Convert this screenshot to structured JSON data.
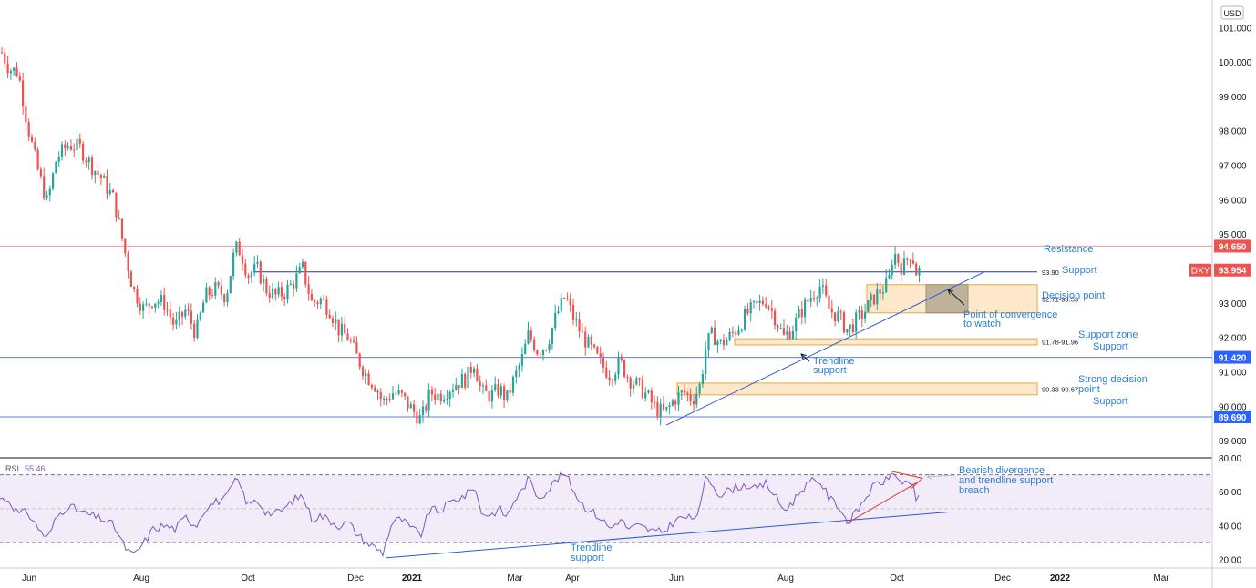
{
  "currency_button": "USD",
  "symbol": "DXY",
  "chart_data": {
    "type": "candlestick",
    "price_axis": {
      "ylim": [
        88.5,
        101.8
      ],
      "ticks": [
        "89.000",
        "90.000",
        "91.000",
        "92.000",
        "93.000",
        "94.000",
        "95.000",
        "96.000",
        "97.000",
        "98.000",
        "99.000",
        "100.000",
        "101.000"
      ]
    },
    "time_axis": {
      "ticks": [
        "Jun",
        "Aug",
        "Oct",
        "Dec",
        "2021",
        "Mar",
        "Apr",
        "Jun",
        "Aug",
        "Oct",
        "Dec",
        "2022",
        "Mar"
      ]
    },
    "price_path": [
      [
        0,
        100.4
      ],
      [
        10,
        99.8
      ],
      [
        20,
        99.7
      ],
      [
        30,
        98.2
      ],
      [
        40,
        97.0
      ],
      [
        52,
        95.9
      ],
      [
        62,
        97.2
      ],
      [
        75,
        97.6
      ],
      [
        88,
        97.5
      ],
      [
        100,
        97.0
      ],
      [
        112,
        96.6
      ],
      [
        125,
        96.0
      ],
      [
        136,
        94.6
      ],
      [
        146,
        93.4
      ],
      [
        158,
        92.8
      ],
      [
        168,
        93.1
      ],
      [
        180,
        93.0
      ],
      [
        192,
        92.3
      ],
      [
        204,
        92.8
      ],
      [
        215,
        92.1
      ],
      [
        225,
        93.2
      ],
      [
        236,
        93.4
      ],
      [
        248,
        93.2
      ],
      [
        258,
        94.6
      ],
      [
        264,
        94.5
      ],
      [
        272,
        93.8
      ],
      [
        282,
        94.0
      ],
      [
        292,
        93.4
      ],
      [
        302,
        93.2
      ],
      [
        312,
        93.3
      ],
      [
        322,
        93.6
      ],
      [
        332,
        94.0
      ],
      [
        342,
        93.0
      ],
      [
        352,
        93.1
      ],
      [
        362,
        92.8
      ],
      [
        372,
        92.2
      ],
      [
        382,
        92.0
      ],
      [
        392,
        91.4
      ],
      [
        402,
        90.9
      ],
      [
        412,
        90.6
      ],
      [
        420,
        90.1
      ],
      [
        430,
        90.4
      ],
      [
        440,
        90.3
      ],
      [
        452,
        89.9
      ],
      [
        462,
        89.6
      ],
      [
        472,
        90.4
      ],
      [
        482,
        90.3
      ],
      [
        492,
        90.5
      ],
      [
        502,
        90.7
      ],
      [
        512,
        90.8
      ],
      [
        520,
        91.3
      ],
      [
        528,
        90.4
      ],
      [
        538,
        90.3
      ],
      [
        548,
        90.5
      ],
      [
        556,
        90.2
      ],
      [
        564,
        90.8
      ],
      [
        572,
        91.3
      ],
      [
        580,
        92.1
      ],
      [
        590,
        91.6
      ],
      [
        600,
        91.8
      ],
      [
        610,
        92.6
      ],
      [
        620,
        93.2
      ],
      [
        630,
        92.5
      ],
      [
        640,
        92.0
      ],
      [
        650,
        91.6
      ],
      [
        660,
        91.2
      ],
      [
        670,
        90.9
      ],
      [
        680,
        91.3
      ],
      [
        690,
        90.8
      ],
      [
        700,
        90.6
      ],
      [
        710,
        90.3
      ],
      [
        720,
        89.9
      ],
      [
        730,
        89.8
      ],
      [
        740,
        90.2
      ],
      [
        750,
        90.4
      ],
      [
        760,
        90.2
      ],
      [
        768,
        90.6
      ],
      [
        775,
        91.8
      ],
      [
        782,
        92.1
      ],
      [
        790,
        91.8
      ],
      [
        800,
        92.0
      ],
      [
        810,
        92.3
      ],
      [
        820,
        92.7
      ],
      [
        830,
        92.9
      ],
      [
        840,
        93.1
      ],
      [
        850,
        92.6
      ],
      [
        860,
        92.0
      ],
      [
        870,
        92.3
      ],
      [
        880,
        92.8
      ],
      [
        890,
        93.2
      ],
      [
        900,
        93.5
      ],
      [
        910,
        92.8
      ],
      [
        920,
        92.6
      ],
      [
        930,
        92.2
      ],
      [
        940,
        92.5
      ],
      [
        950,
        92.8
      ],
      [
        960,
        93.2
      ],
      [
        968,
        93.4
      ],
      [
        975,
        93.6
      ],
      [
        980,
        94.5
      ],
      [
        990,
        94.0
      ],
      [
        1000,
        94.5
      ],
      [
        1005,
        93.9
      ],
      [
        1010,
        93.95
      ]
    ],
    "rsi": {
      "label": "RSI",
      "value": "55.46",
      "ylim": [
        15,
        80
      ],
      "ticks": [
        "20.00",
        "40.00",
        "60.00",
        "80.00"
      ],
      "upper_band": 70,
      "lower_band": 30,
      "midline": 50,
      "points": [
        [
          0,
          56
        ],
        [
          10,
          55
        ],
        [
          20,
          47
        ],
        [
          30,
          48
        ],
        [
          40,
          40
        ],
        [
          52,
          32
        ],
        [
          62,
          45
        ],
        [
          75,
          52
        ],
        [
          88,
          48
        ],
        [
          100,
          46
        ],
        [
          112,
          44
        ],
        [
          125,
          40
        ],
        [
          136,
          28
        ],
        [
          146,
          22
        ],
        [
          158,
          30
        ],
        [
          168,
          38
        ],
        [
          180,
          40
        ],
        [
          192,
          38
        ],
        [
          204,
          45
        ],
        [
          215,
          40
        ],
        [
          225,
          50
        ],
        [
          236,
          54
        ],
        [
          248,
          56
        ],
        [
          258,
          67
        ],
        [
          264,
          63
        ],
        [
          272,
          52
        ],
        [
          282,
          55
        ],
        [
          292,
          48
        ],
        [
          302,
          47
        ],
        [
          312,
          50
        ],
        [
          322,
          55
        ],
        [
          332,
          58
        ],
        [
          342,
          44
        ],
        [
          352,
          46
        ],
        [
          362,
          43
        ],
        [
          372,
          40
        ],
        [
          382,
          42
        ],
        [
          392,
          35
        ],
        [
          402,
          30
        ],
        [
          412,
          27
        ],
        [
          420,
          24
        ],
        [
          430,
          42
        ],
        [
          440,
          44
        ],
        [
          452,
          38
        ],
        [
          462,
          35
        ],
        [
          472,
          50
        ],
        [
          482,
          48
        ],
        [
          492,
          53
        ],
        [
          502,
          56
        ],
        [
          512,
          58
        ],
        [
          520,
          64
        ],
        [
          528,
          48
        ],
        [
          538,
          46
        ],
        [
          548,
          50
        ],
        [
          556,
          45
        ],
        [
          564,
          55
        ],
        [
          572,
          60
        ],
        [
          580,
          68
        ],
        [
          590,
          57
        ],
        [
          600,
          60
        ],
        [
          610,
          67
        ],
        [
          620,
          71
        ],
        [
          630,
          60
        ],
        [
          640,
          52
        ],
        [
          650,
          48
        ],
        [
          660,
          44
        ],
        [
          670,
          38
        ],
        [
          680,
          44
        ],
        [
          690,
          38
        ],
        [
          700,
          40
        ],
        [
          710,
          38
        ],
        [
          720,
          36
        ],
        [
          730,
          37
        ],
        [
          740,
          43
        ],
        [
          750,
          45
        ],
        [
          760,
          44
        ],
        [
          768,
          50
        ],
        [
          775,
          70
        ],
        [
          782,
          64
        ],
        [
          790,
          58
        ],
        [
          800,
          61
        ],
        [
          810,
          63
        ],
        [
          820,
          64
        ],
        [
          830,
          61
        ],
        [
          840,
          65
        ],
        [
          850,
          58
        ],
        [
          860,
          49
        ],
        [
          870,
          54
        ],
        [
          880,
          62
        ],
        [
          890,
          66
        ],
        [
          900,
          66
        ],
        [
          910,
          56
        ],
        [
          920,
          52
        ],
        [
          930,
          42
        ],
        [
          940,
          48
        ],
        [
          950,
          57
        ],
        [
          960,
          64
        ],
        [
          968,
          66
        ],
        [
          975,
          67
        ],
        [
          980,
          73
        ],
        [
          990,
          63
        ],
        [
          1000,
          66
        ],
        [
          1005,
          56
        ],
        [
          1010,
          55.46
        ]
      ]
    },
    "horizontal_levels": [
      {
        "price": 94.65,
        "label": "94.650",
        "color": "#ef5350"
      },
      {
        "price": 93.954,
        "label": "93.954",
        "color": "#ef5350"
      },
      {
        "price": 91.42,
        "label": "91.420",
        "color": "#2962ff"
      },
      {
        "price": 89.69,
        "label": "89.690",
        "color": "#2962ff"
      }
    ],
    "zones": [
      {
        "label": "92.71-93.53",
        "low": 92.71,
        "high": 93.53
      },
      {
        "label": "91.78-91.96",
        "low": 91.78,
        "high": 91.96
      },
      {
        "label": "90.33-90.67",
        "low": 90.33,
        "high": 90.67
      }
    ],
    "zone_93_90_label": "93.90",
    "annotations": {
      "resistance": "Resistance",
      "support_1": "Support",
      "decision_point": "Decision point",
      "convergence_1": "Point of convergence",
      "convergence_2": "to watch",
      "support_zone": "Support zone",
      "support_2": "Support",
      "trendline_1": "Trendline",
      "trendline_2": "support",
      "strong_1": "Strong decision",
      "strong_2": "point",
      "support_3": "Support",
      "bearish_1": "Bearish divergence",
      "bearish_2": "and trendline support",
      "bearish_3": "breach",
      "rsi_trend_1": "Trendline",
      "rsi_trend_2": "support"
    },
    "colors": {
      "up": "#26a69a",
      "down": "#ef5350",
      "annotation": "#2a7fd4",
      "zone_fill": "#fde8c8",
      "zone_stroke": "#e6a23c",
      "rsi_line": "#7e57c2",
      "rsi_band": "#ede7f6"
    }
  }
}
